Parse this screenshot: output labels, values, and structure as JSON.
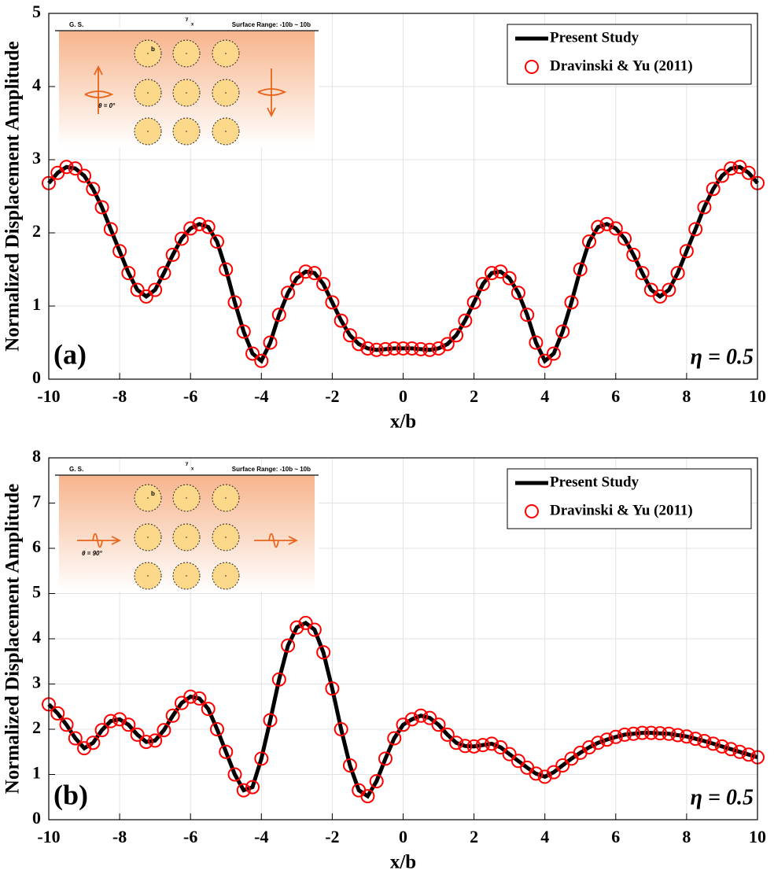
{
  "chart_data": [
    {
      "type": "line",
      "panel_label": "(a)",
      "annotation": "η = 0.5",
      "x_label": "x/b",
      "y_label": "Normalized Displacement Amplitude",
      "xlim": [
        -10,
        10
      ],
      "xticks": [
        -10,
        -8,
        -6,
        -4,
        -2,
        0,
        2,
        4,
        6,
        8,
        10
      ],
      "ylim": [
        0,
        5
      ],
      "yticks": [
        0,
        1,
        2,
        3,
        4,
        5
      ],
      "grid": true,
      "legend": "upper right",
      "inset": {
        "ground_surface": "G. S.",
        "range": "Surface Range: -10b ~ 10b",
        "radius": "b",
        "angle": "θ = 0°",
        "axis_y": "y",
        "axis_x": "x"
      },
      "x": [
        -10,
        -9.75,
        -9.5,
        -9.25,
        -9,
        -8.75,
        -8.5,
        -8.25,
        -8,
        -7.75,
        -7.5,
        -7.25,
        -7,
        -6.75,
        -6.5,
        -6.25,
        -6,
        -5.75,
        -5.5,
        -5.25,
        -5,
        -4.75,
        -4.5,
        -4.25,
        -4,
        -3.75,
        -3.5,
        -3.25,
        -3,
        -2.75,
        -2.5,
        -2.25,
        -2,
        -1.75,
        -1.5,
        -1.25,
        -1,
        -0.75,
        -0.5,
        -0.25,
        0,
        0.25,
        0.5,
        0.75,
        1,
        1.25,
        1.5,
        1.75,
        2,
        2.25,
        2.5,
        2.75,
        3,
        3.25,
        3.5,
        3.75,
        4,
        4.25,
        4.5,
        4.75,
        5,
        5.25,
        5.5,
        5.75,
        6,
        6.25,
        6.5,
        6.75,
        7,
        7.25,
        7.5,
        7.75,
        8,
        8.25,
        8.5,
        8.75,
        9,
        9.25,
        9.5,
        9.75,
        10
      ],
      "series": [
        {
          "name": "Present Study",
          "color": "#000000",
          "style": "line",
          "values": [
            2.68,
            2.82,
            2.9,
            2.88,
            2.78,
            2.6,
            2.35,
            2.05,
            1.75,
            1.45,
            1.22,
            1.13,
            1.22,
            1.45,
            1.7,
            1.92,
            2.06,
            2.12,
            2.08,
            1.88,
            1.5,
            1.05,
            0.65,
            0.35,
            0.25,
            0.5,
            0.88,
            1.18,
            1.38,
            1.47,
            1.45,
            1.3,
            1.05,
            0.8,
            0.6,
            0.48,
            0.42,
            0.4,
            0.41,
            0.42,
            0.42,
            0.42,
            0.41,
            0.4,
            0.42,
            0.48,
            0.6,
            0.8,
            1.05,
            1.3,
            1.45,
            1.47,
            1.38,
            1.18,
            0.88,
            0.5,
            0.25,
            0.35,
            0.65,
            1.05,
            1.5,
            1.88,
            2.08,
            2.12,
            2.06,
            1.92,
            1.7,
            1.45,
            1.22,
            1.13,
            1.22,
            1.45,
            1.75,
            2.05,
            2.35,
            2.6,
            2.78,
            2.88,
            2.9,
            2.82,
            2.68
          ]
        },
        {
          "name": "Dravinski & Yu (2011)",
          "color": "#ff0000",
          "style": "circle",
          "values": [
            2.68,
            2.82,
            2.9,
            2.88,
            2.78,
            2.6,
            2.35,
            2.05,
            1.75,
            1.45,
            1.22,
            1.13,
            1.22,
            1.45,
            1.7,
            1.92,
            2.06,
            2.12,
            2.08,
            1.88,
            1.5,
            1.05,
            0.65,
            0.35,
            0.25,
            0.5,
            0.88,
            1.18,
            1.38,
            1.47,
            1.45,
            1.3,
            1.05,
            0.8,
            0.6,
            0.48,
            0.42,
            0.4,
            0.41,
            0.42,
            0.42,
            0.42,
            0.41,
            0.4,
            0.42,
            0.48,
            0.6,
            0.8,
            1.05,
            1.3,
            1.45,
            1.47,
            1.38,
            1.18,
            0.88,
            0.5,
            0.25,
            0.35,
            0.65,
            1.05,
            1.5,
            1.88,
            2.08,
            2.12,
            2.06,
            1.92,
            1.7,
            1.45,
            1.22,
            1.13,
            1.22,
            1.45,
            1.75,
            2.05,
            2.35,
            2.6,
            2.78,
            2.88,
            2.9,
            2.82,
            2.68
          ]
        }
      ]
    },
    {
      "type": "line",
      "panel_label": "(b)",
      "annotation": "η = 0.5",
      "x_label": "x/b",
      "y_label": "Normalized Displacement Amplitude",
      "xlim": [
        -10,
        10
      ],
      "xticks": [
        -10,
        -8,
        -6,
        -4,
        -2,
        0,
        2,
        4,
        6,
        8,
        10
      ],
      "ylim": [
        0,
        8
      ],
      "yticks": [
        0,
        1,
        2,
        3,
        4,
        5,
        6,
        7,
        8
      ],
      "grid": true,
      "legend": "upper right",
      "inset": {
        "ground_surface": "G. S.",
        "range": "Surface Range: -10b ~ 10b",
        "radius": "b",
        "angle": "θ = 90°",
        "axis_y": "y",
        "axis_x": "x"
      },
      "x": [
        -10,
        -9.75,
        -9.5,
        -9.25,
        -9,
        -8.75,
        -8.5,
        -8.25,
        -8,
        -7.75,
        -7.5,
        -7.25,
        -7,
        -6.75,
        -6.5,
        -6.25,
        -6,
        -5.75,
        -5.5,
        -5.25,
        -5,
        -4.75,
        -4.5,
        -4.25,
        -4,
        -3.75,
        -3.5,
        -3.25,
        -3,
        -2.75,
        -2.5,
        -2.25,
        -2,
        -1.75,
        -1.5,
        -1.25,
        -1,
        -0.75,
        -0.5,
        -0.25,
        0,
        0.25,
        0.5,
        0.75,
        1,
        1.25,
        1.5,
        1.75,
        2,
        2.25,
        2.5,
        2.75,
        3,
        3.25,
        3.5,
        3.75,
        4,
        4.25,
        4.5,
        4.75,
        5,
        5.25,
        5.5,
        5.75,
        6,
        6.25,
        6.5,
        6.75,
        7,
        7.25,
        7.5,
        7.75,
        8,
        8.25,
        8.5,
        8.75,
        9,
        9.25,
        9.5,
        9.75,
        10
      ],
      "series": [
        {
          "name": "Present Study",
          "color": "#000000",
          "style": "line",
          "values": [
            2.55,
            2.35,
            2.1,
            1.8,
            1.58,
            1.7,
            1.98,
            2.18,
            2.22,
            2.1,
            1.88,
            1.72,
            1.75,
            1.98,
            2.3,
            2.58,
            2.72,
            2.68,
            2.45,
            2.0,
            1.5,
            1.0,
            0.65,
            0.72,
            1.35,
            2.2,
            3.1,
            3.85,
            4.25,
            4.35,
            4.2,
            3.7,
            2.9,
            2.0,
            1.2,
            0.65,
            0.52,
            0.85,
            1.35,
            1.8,
            2.1,
            2.22,
            2.3,
            2.25,
            2.1,
            1.88,
            1.7,
            1.63,
            1.62,
            1.65,
            1.68,
            1.6,
            1.45,
            1.3,
            1.15,
            1.02,
            0.95,
            1.05,
            1.2,
            1.35,
            1.48,
            1.6,
            1.7,
            1.77,
            1.83,
            1.88,
            1.9,
            1.92,
            1.92,
            1.91,
            1.9,
            1.87,
            1.84,
            1.79,
            1.74,
            1.68,
            1.62,
            1.56,
            1.5,
            1.44,
            1.38
          ]
        },
        {
          "name": "Dravinski & Yu (2011)",
          "color": "#ff0000",
          "style": "circle",
          "values": [
            2.55,
            2.35,
            2.1,
            1.8,
            1.58,
            1.7,
            1.98,
            2.18,
            2.22,
            2.1,
            1.88,
            1.72,
            1.75,
            1.98,
            2.3,
            2.58,
            2.72,
            2.68,
            2.45,
            2.0,
            1.5,
            1.0,
            0.65,
            0.72,
            1.35,
            2.2,
            3.1,
            3.85,
            4.25,
            4.35,
            4.2,
            3.7,
            2.9,
            2.0,
            1.2,
            0.65,
            0.52,
            0.85,
            1.35,
            1.8,
            2.1,
            2.22,
            2.3,
            2.25,
            2.1,
            1.88,
            1.7,
            1.63,
            1.62,
            1.65,
            1.68,
            1.6,
            1.45,
            1.3,
            1.15,
            1.02,
            0.95,
            1.05,
            1.2,
            1.35,
            1.48,
            1.6,
            1.7,
            1.77,
            1.83,
            1.88,
            1.9,
            1.92,
            1.92,
            1.91,
            1.9,
            1.87,
            1.84,
            1.79,
            1.74,
            1.68,
            1.62,
            1.56,
            1.5,
            1.44,
            1.38
          ]
        }
      ]
    }
  ]
}
